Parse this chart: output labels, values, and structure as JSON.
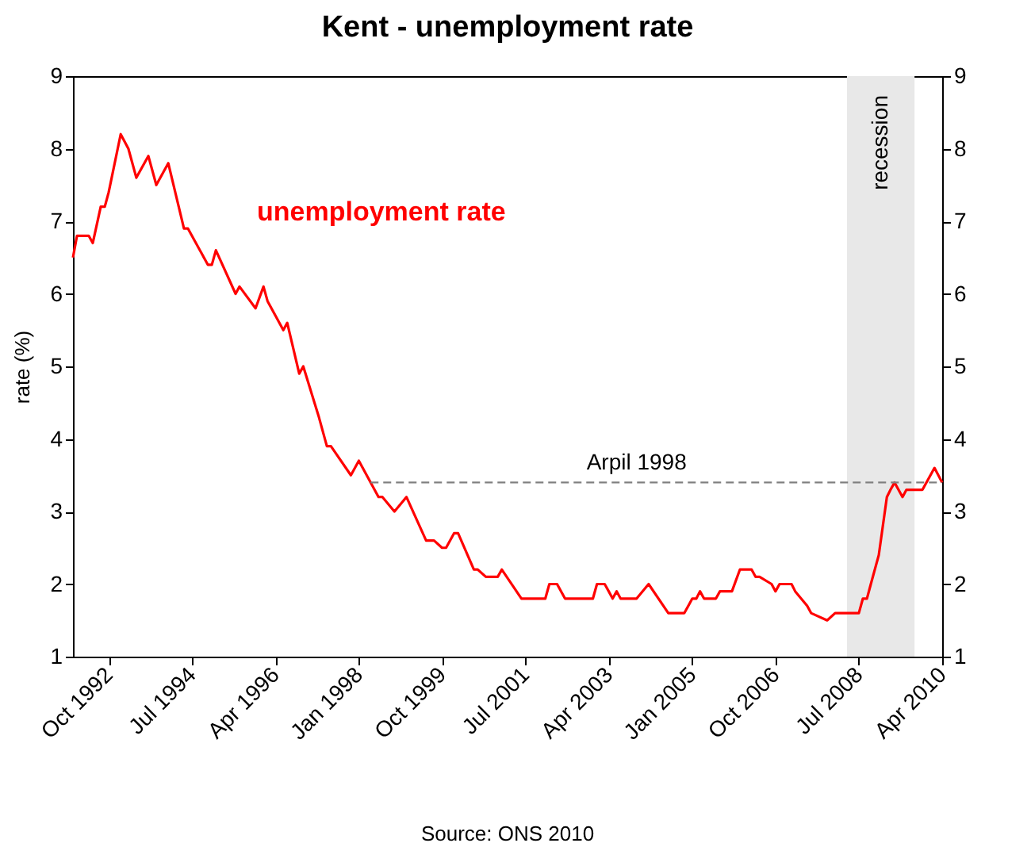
{
  "chart_data": {
    "type": "line",
    "title": "Kent - unemployment rate",
    "ylabel": "rate (%)",
    "annotations": [
      "Source: ONS 2010",
      {
        "text": "Arpil 1998",
        "x": "2003-11",
        "y": 3.4
      }
    ],
    "series": [
      {
        "name": "unemployment rate",
        "color": "#ff0000",
        "x": [
          "1992-01",
          "1992-02",
          "1992-05",
          "1992-06",
          "1992-08",
          "1992-09",
          "1992-10",
          "1993-01",
          "1993-03",
          "1993-05",
          "1993-08",
          "1993-10",
          "1994-01",
          "1994-05",
          "1994-06",
          "1994-07",
          "1994-11",
          "1994-12",
          "1995-01",
          "1995-06",
          "1995-07",
          "1995-11",
          "1996-01",
          "1996-02",
          "1996-06",
          "1996-07",
          "1996-10",
          "1996-11",
          "1997-03",
          "1997-05",
          "1997-06",
          "1997-11",
          "1998-01",
          "1998-06",
          "1998-07",
          "1998-10",
          "1999-01",
          "1999-06",
          "1999-08",
          "1999-10",
          "1999-11",
          "2000-01",
          "2000-02",
          "2000-06",
          "2000-07",
          "2000-09",
          "2000-12",
          "2001-01",
          "2001-06",
          "2001-12",
          "2002-01",
          "2002-03",
          "2002-05",
          "2002-12",
          "2003-01",
          "2003-03",
          "2003-04",
          "2003-05",
          "2003-06",
          "2003-07",
          "2003-11",
          "2004-02",
          "2004-07",
          "2004-11",
          "2005-01",
          "2005-02",
          "2005-03",
          "2005-04",
          "2005-07",
          "2005-08",
          "2005-11",
          "2006-01",
          "2006-04",
          "2006-05",
          "2006-06",
          "2006-09",
          "2006-10",
          "2006-11",
          "2007-02",
          "2007-03",
          "2007-06",
          "2007-07",
          "2007-11",
          "2008-01",
          "2008-07",
          "2008-08",
          "2008-09",
          "2008-10",
          "2008-12",
          "2009-02",
          "2009-03",
          "2009-04",
          "2009-06",
          "2009-07",
          "2009-11",
          "2010-02",
          "2010-04"
        ],
        "values": [
          6.5,
          6.8,
          6.8,
          6.7,
          7.2,
          7.2,
          7.4,
          8.2,
          8.0,
          7.6,
          7.9,
          7.5,
          7.8,
          6.9,
          6.9,
          6.8,
          6.4,
          6.4,
          6.6,
          6.0,
          6.1,
          5.8,
          6.1,
          5.9,
          5.5,
          5.6,
          4.9,
          5.0,
          4.3,
          3.9,
          3.9,
          3.5,
          3.7,
          3.2,
          3.2,
          3.0,
          3.2,
          2.6,
          2.6,
          2.5,
          2.5,
          2.7,
          2.7,
          2.2,
          2.2,
          2.1,
          2.1,
          2.2,
          1.8,
          1.8,
          2.0,
          2.0,
          1.8,
          1.8,
          2.0,
          2.0,
          1.9,
          1.8,
          1.9,
          1.8,
          1.8,
          2.0,
          1.6,
          1.6,
          1.8,
          1.8,
          1.9,
          1.8,
          1.8,
          1.9,
          1.9,
          2.2,
          2.2,
          2.1,
          2.1,
          2.0,
          1.9,
          2.0,
          2.0,
          1.9,
          1.7,
          1.6,
          1.5,
          1.6,
          1.6,
          1.8,
          1.8,
          2.0,
          2.4,
          3.2,
          3.3,
          3.4,
          3.2,
          3.3,
          3.3,
          3.6,
          3.4
        ]
      },
      {
        "type": "line",
        "color": "#808080",
        "line_style": "dashed",
        "x": [
          "1998-04",
          "2010-04"
        ],
        "values": [
          3.4,
          3.4
        ]
      }
    ],
    "bands": [
      {
        "axis": "x",
        "from": "2008-04",
        "to": "2009-09",
        "label": "recession",
        "color": "#e8e8e8"
      }
    ],
    "xlim": [
      "1992-01",
      "2010-04"
    ],
    "xticks": [
      {
        "value": "1992-10",
        "label": "Oct 1992"
      },
      {
        "value": "1994-07",
        "label": "Jul 1994"
      },
      {
        "value": "1996-04",
        "label": "Apr 1996"
      },
      {
        "value": "1998-01",
        "label": "Jan 1998"
      },
      {
        "value": "1999-10",
        "label": "Oct 1999"
      },
      {
        "value": "2001-07",
        "label": "Jul 2001"
      },
      {
        "value": "2003-04",
        "label": "Apr 2003"
      },
      {
        "value": "2005-01",
        "label": "Jan 2005"
      },
      {
        "value": "2006-10",
        "label": "Oct 2006"
      },
      {
        "value": "2008-07",
        "label": "Jul 2008"
      },
      {
        "value": "2010-04",
        "label": "Apr 2010"
      }
    ],
    "ylim": [
      1,
      9
    ],
    "yticks": [
      1,
      2,
      3,
      4,
      5,
      6,
      7,
      8,
      9
    ],
    "y2lim": [
      1,
      9
    ],
    "y2ticks": [
      1,
      2,
      3,
      4,
      5,
      6,
      7,
      8,
      9
    ],
    "grid": false,
    "legend": false,
    "marker": "none",
    "line_style": "solid"
  }
}
